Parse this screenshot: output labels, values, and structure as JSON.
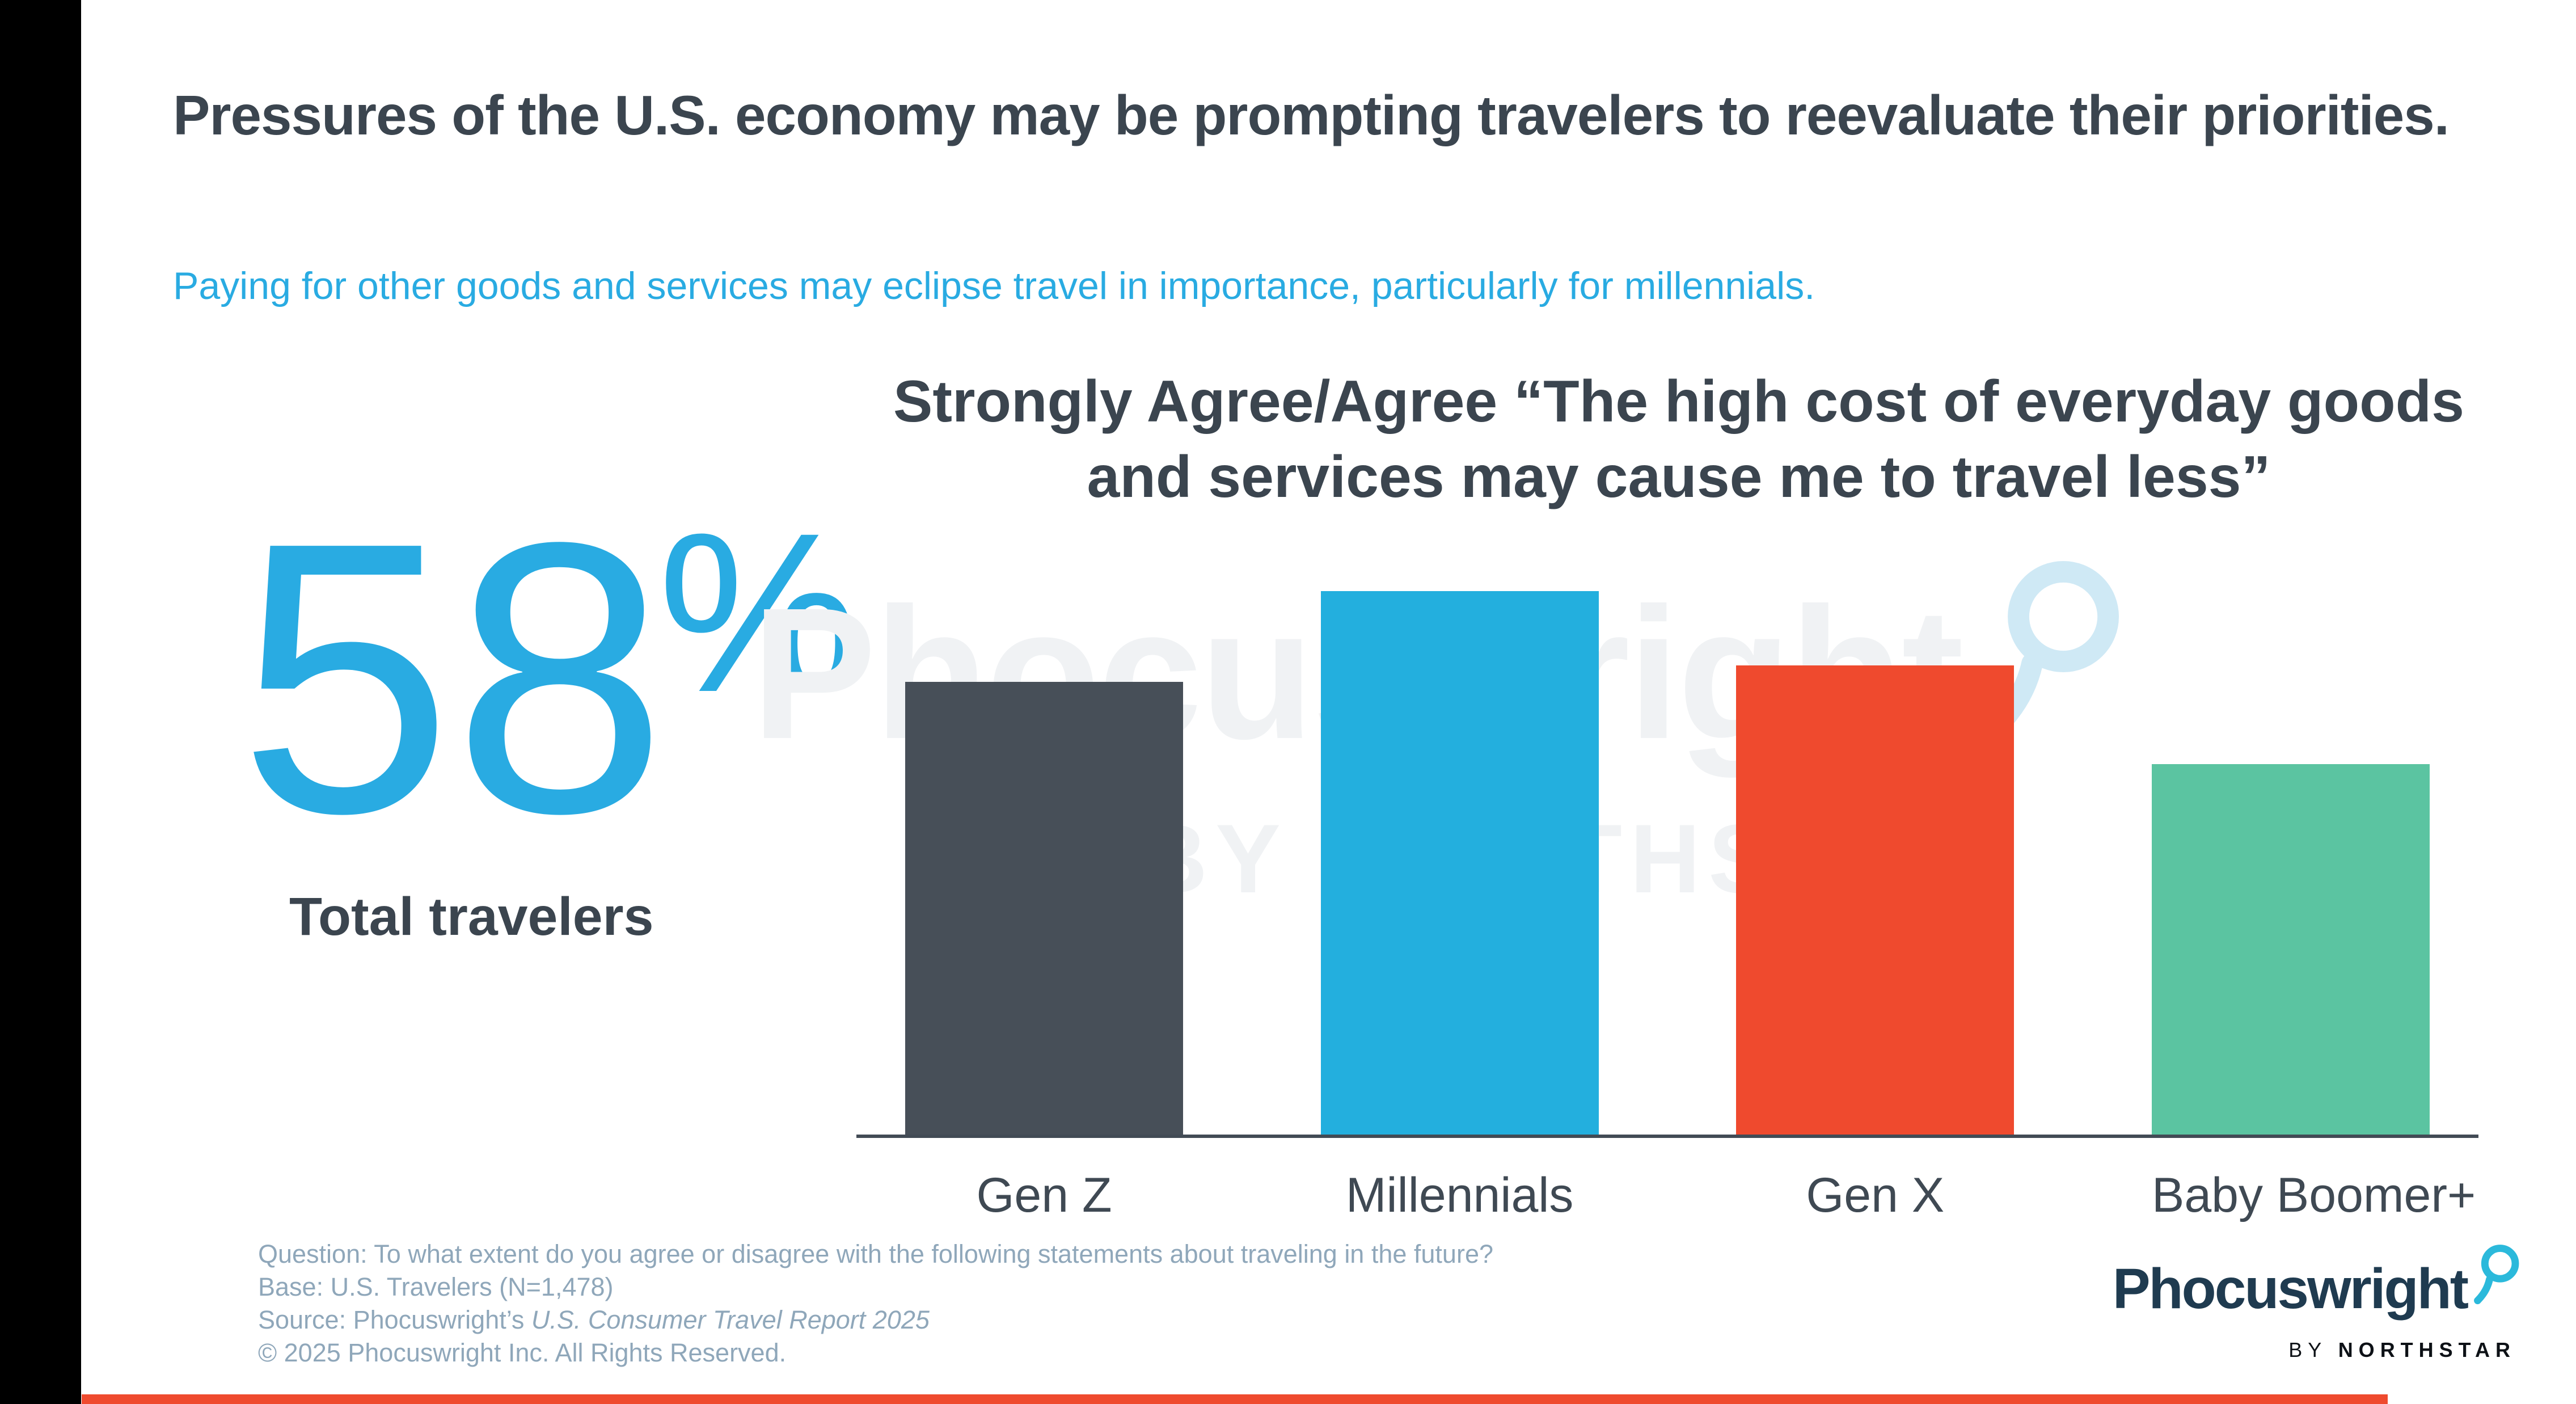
{
  "slide": {
    "title": "Pressures of the U.S. economy may be prompting travelers to reevaluate their priorities.",
    "subtitle": "Paying for other goods and services may eclipse travel in importance, particularly for millennials.",
    "stat": {
      "number": "58",
      "percent": "%",
      "label": "Total travelers"
    },
    "watermark": {
      "brand": "Phocuswright",
      "byline": "BY NORTHSTAR"
    },
    "footer": {
      "question": "Question: To what extent do you agree or disagree with the following statements about traveling in the future?",
      "base": "Base: U.S. Travelers (N=1,478)",
      "source_prefix": "Source: Phocuswright’s ",
      "source_title": "U.S. Consumer Travel Report 2025",
      "copyright": "© 2025 Phocuswright Inc. All Rights Reserved."
    },
    "logo": {
      "brand": "Phocuswright",
      "by": "BY",
      "network": "NORTHSTAR"
    }
  },
  "chart_data": {
    "type": "bar",
    "title": "Strongly Agree/Agree “The high cost of everyday goods and services may cause me to travel less”",
    "categories": [
      "Gen Z",
      "Millennials",
      "Gen X",
      "Baby Boomer+"
    ],
    "values": [
      55,
      66,
      57,
      45
    ],
    "unit": "percent",
    "value_labels_shown": false,
    "note": "No numeric labels or y-axis shown; values estimated from relative bar heights, anchored to the 58% total-travelers stat",
    "ylim": [
      0,
      70
    ],
    "grid": false,
    "legend": false,
    "bar_colors": [
      "#474F58",
      "#23AFDE",
      "#EF4A2E",
      "#5BC4A1"
    ]
  },
  "colors": {
    "accent_blue": "#29ABE2",
    "heading_dark": "#3B454F",
    "footer_gray_blue": "#8FA7BA",
    "logo_navy": "#1F3B50",
    "logo_cyan": "#2BB9DB",
    "watermark_gray": "#F0F2F4",
    "watermark_cyan": "#CFE9F5",
    "axis_line": "#424B55",
    "bottom_stripe": "#EF4A2E",
    "left_edge": "#000000"
  }
}
